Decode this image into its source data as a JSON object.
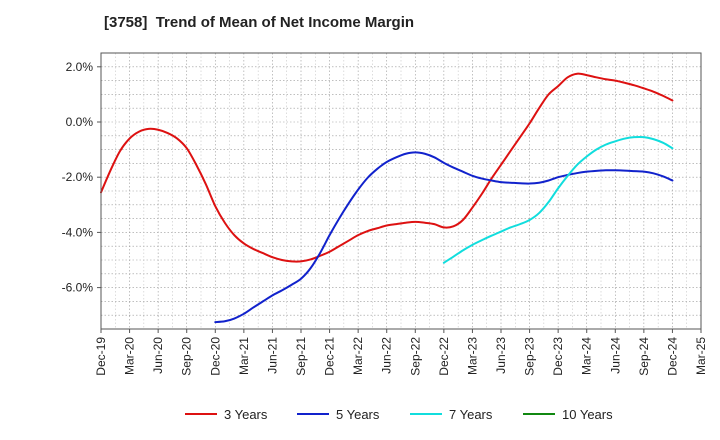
{
  "chart_data": {
    "type": "line",
    "title": "[3758]  Trend of Mean of Net Income Margin",
    "xlabel": "",
    "ylabel": "",
    "x_ticks": [
      "Dec-19",
      "Mar-20",
      "Jun-20",
      "Sep-20",
      "Dec-20",
      "Mar-21",
      "Jun-21",
      "Sep-21",
      "Dec-21",
      "Mar-22",
      "Jun-22",
      "Sep-22",
      "Dec-22",
      "Mar-23",
      "Jun-23",
      "Sep-23",
      "Dec-23",
      "Mar-24",
      "Jun-24",
      "Sep-24",
      "Dec-24",
      "Mar-25"
    ],
    "y_ticks": [
      "2.0%",
      "0.0%",
      "-2.0%",
      "-4.0%",
      "-6.0%"
    ],
    "y_tick_values": [
      2,
      0,
      -2,
      -4,
      -6
    ],
    "ylim": [
      -7.5,
      2.5
    ],
    "grid": true,
    "legend_position": "bottom",
    "series": [
      {
        "name": "3 Years",
        "color": "#dd1111",
        "points": [
          [
            "Dec-19",
            -2.55
          ],
          [
            "Jan-20",
            -1.75
          ],
          [
            "Feb-20",
            -1.05
          ],
          [
            "Mar-20",
            -0.6
          ],
          [
            "Apr-20",
            -0.35
          ],
          [
            "May-20",
            -0.25
          ],
          [
            "Jun-20",
            -0.28
          ],
          [
            "Jul-20",
            -0.4
          ],
          [
            "Aug-20",
            -0.6
          ],
          [
            "Sep-20",
            -0.95
          ],
          [
            "Oct-20",
            -1.55
          ],
          [
            "Nov-20",
            -2.25
          ],
          [
            "Dec-20",
            -3.05
          ],
          [
            "Jan-21",
            -3.65
          ],
          [
            "Feb-21",
            -4.1
          ],
          [
            "Mar-21",
            -4.4
          ],
          [
            "Apr-21",
            -4.6
          ],
          [
            "May-21",
            -4.75
          ],
          [
            "Jun-21",
            -4.9
          ],
          [
            "Jul-21",
            -5.0
          ],
          [
            "Aug-21",
            -5.05
          ],
          [
            "Sep-21",
            -5.05
          ],
          [
            "Oct-21",
            -4.98
          ],
          [
            "Nov-21",
            -4.85
          ],
          [
            "Dec-21",
            -4.7
          ],
          [
            "Jan-22",
            -4.5
          ],
          [
            "Feb-22",
            -4.3
          ],
          [
            "Mar-22",
            -4.1
          ],
          [
            "Apr-22",
            -3.95
          ],
          [
            "May-22",
            -3.85
          ],
          [
            "Jun-22",
            -3.75
          ],
          [
            "Jul-22",
            -3.7
          ],
          [
            "Aug-22",
            -3.65
          ],
          [
            "Sep-22",
            -3.62
          ],
          [
            "Oct-22",
            -3.65
          ],
          [
            "Nov-22",
            -3.7
          ],
          [
            "Dec-22",
            -3.82
          ],
          [
            "Jan-23",
            -3.78
          ],
          [
            "Feb-23",
            -3.55
          ],
          [
            "Mar-23",
            -3.1
          ],
          [
            "Apr-23",
            -2.6
          ],
          [
            "May-23",
            -2.05
          ],
          [
            "Jun-23",
            -1.55
          ],
          [
            "Jul-23",
            -1.05
          ],
          [
            "Aug-23",
            -0.55
          ],
          [
            "Sep-23",
            -0.05
          ],
          [
            "Oct-23",
            0.5
          ],
          [
            "Nov-23",
            1.0
          ],
          [
            "Dec-23",
            1.3
          ],
          [
            "Jan-24",
            1.62
          ],
          [
            "Feb-24",
            1.75
          ],
          [
            "Mar-24",
            1.7
          ],
          [
            "Apr-24",
            1.62
          ],
          [
            "May-24",
            1.55
          ],
          [
            "Jun-24",
            1.5
          ],
          [
            "Jul-24",
            1.42
          ],
          [
            "Aug-24",
            1.33
          ],
          [
            "Sep-24",
            1.22
          ],
          [
            "Oct-24",
            1.1
          ],
          [
            "Nov-24",
            0.95
          ],
          [
            "Dec-24",
            0.78
          ]
        ]
      },
      {
        "name": "5 Years",
        "color": "#1122cc",
        "points": [
          [
            "Dec-20",
            -7.25
          ],
          [
            "Jan-21",
            -7.22
          ],
          [
            "Feb-21",
            -7.12
          ],
          [
            "Mar-21",
            -6.95
          ],
          [
            "Apr-21",
            -6.72
          ],
          [
            "May-21",
            -6.5
          ],
          [
            "Jun-21",
            -6.28
          ],
          [
            "Jul-21",
            -6.1
          ],
          [
            "Aug-21",
            -5.9
          ],
          [
            "Sep-21",
            -5.68
          ],
          [
            "Oct-21",
            -5.3
          ],
          [
            "Nov-21",
            -4.75
          ],
          [
            "Dec-21",
            -4.1
          ],
          [
            "Jan-22",
            -3.5
          ],
          [
            "Feb-22",
            -2.95
          ],
          [
            "Mar-22",
            -2.45
          ],
          [
            "Apr-22",
            -2.02
          ],
          [
            "May-22",
            -1.7
          ],
          [
            "Jun-22",
            -1.45
          ],
          [
            "Jul-22",
            -1.28
          ],
          [
            "Aug-22",
            -1.15
          ],
          [
            "Sep-22",
            -1.1
          ],
          [
            "Oct-22",
            -1.15
          ],
          [
            "Nov-22",
            -1.28
          ],
          [
            "Dec-22",
            -1.48
          ],
          [
            "Jan-23",
            -1.65
          ],
          [
            "Feb-23",
            -1.8
          ],
          [
            "Mar-23",
            -1.95
          ],
          [
            "Apr-23",
            -2.05
          ],
          [
            "May-23",
            -2.12
          ],
          [
            "Jun-23",
            -2.18
          ],
          [
            "Jul-23",
            -2.2
          ],
          [
            "Aug-23",
            -2.22
          ],
          [
            "Sep-23",
            -2.23
          ],
          [
            "Oct-23",
            -2.2
          ],
          [
            "Nov-23",
            -2.12
          ],
          [
            "Dec-23",
            -2.0
          ],
          [
            "Jan-24",
            -1.92
          ],
          [
            "Feb-24",
            -1.85
          ],
          [
            "Mar-24",
            -1.8
          ],
          [
            "Apr-24",
            -1.77
          ],
          [
            "May-24",
            -1.75
          ],
          [
            "Jun-24",
            -1.75
          ],
          [
            "Jul-24",
            -1.76
          ],
          [
            "Aug-24",
            -1.78
          ],
          [
            "Sep-24",
            -1.8
          ],
          [
            "Oct-24",
            -1.86
          ],
          [
            "Nov-24",
            -1.97
          ],
          [
            "Dec-24",
            -2.12
          ]
        ]
      },
      {
        "name": "7 Years",
        "color": "#11dddd",
        "points": [
          [
            "Dec-22",
            -5.1
          ],
          [
            "Jan-23",
            -4.88
          ],
          [
            "Feb-23",
            -4.65
          ],
          [
            "Mar-23",
            -4.45
          ],
          [
            "Apr-23",
            -4.28
          ],
          [
            "May-23",
            -4.12
          ],
          [
            "Jun-23",
            -3.97
          ],
          [
            "Jul-23",
            -3.82
          ],
          [
            "Aug-23",
            -3.7
          ],
          [
            "Sep-23",
            -3.55
          ],
          [
            "Oct-23",
            -3.3
          ],
          [
            "Nov-23",
            -2.9
          ],
          [
            "Dec-23",
            -2.4
          ],
          [
            "Jan-24",
            -1.95
          ],
          [
            "Feb-24",
            -1.55
          ],
          [
            "Mar-24",
            -1.25
          ],
          [
            "Apr-24",
            -1.0
          ],
          [
            "May-24",
            -0.82
          ],
          [
            "Jun-24",
            -0.7
          ],
          [
            "Jul-24",
            -0.6
          ],
          [
            "Aug-24",
            -0.55
          ],
          [
            "Sep-24",
            -0.55
          ],
          [
            "Oct-24",
            -0.62
          ],
          [
            "Nov-24",
            -0.75
          ],
          [
            "Dec-24",
            -0.95
          ]
        ]
      },
      {
        "name": "10 Years",
        "color": "#118811",
        "points": []
      }
    ]
  }
}
